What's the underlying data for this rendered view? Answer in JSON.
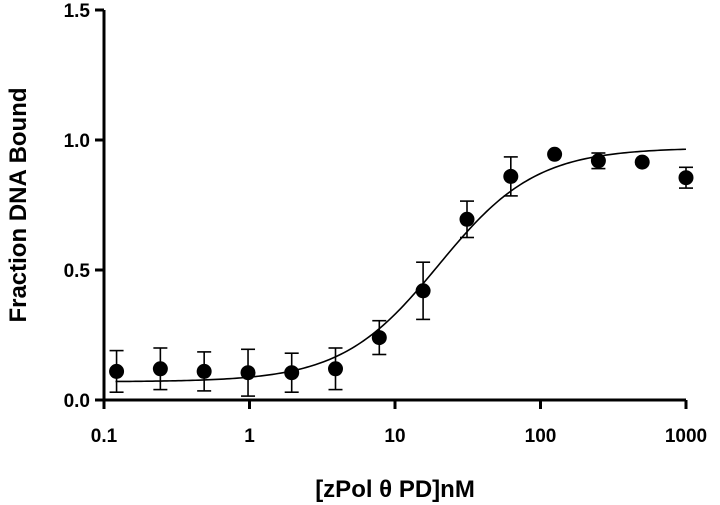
{
  "chart_data": {
    "type": "scatter",
    "xscale": "log",
    "xlabel": "[zPol θ PD]nM",
    "ylabel": "Fraction DNA Bound",
    "xlim": [
      0.1,
      1000
    ],
    "ylim": [
      0.0,
      1.5
    ],
    "xticks": [
      "0.1",
      "1",
      "10",
      "100",
      "1000"
    ],
    "xtick_values": [
      0.1,
      1,
      10,
      100,
      1000
    ],
    "yticks": [
      "0.0",
      "0.5",
      "1.0",
      "1.5"
    ],
    "ytick_values": [
      0.0,
      0.5,
      1.0,
      1.5
    ],
    "grid": false,
    "legend": "none",
    "marker_color": "#000000",
    "series": [
      {
        "points": [
          {
            "x": 0.122,
            "y": 0.11,
            "err": 0.08
          },
          {
            "x": 0.244,
            "y": 0.12,
            "err": 0.08
          },
          {
            "x": 0.488,
            "y": 0.11,
            "err": 0.075
          },
          {
            "x": 0.977,
            "y": 0.105,
            "err": 0.09
          },
          {
            "x": 1.95,
            "y": 0.105,
            "err": 0.075
          },
          {
            "x": 3.9,
            "y": 0.12,
            "err": 0.08
          },
          {
            "x": 7.8,
            "y": 0.24,
            "err": 0.065
          },
          {
            "x": 15.6,
            "y": 0.42,
            "err": 0.11
          },
          {
            "x": 31.25,
            "y": 0.695,
            "err": 0.07
          },
          {
            "x": 62.5,
            "y": 0.86,
            "err": 0.075
          },
          {
            "x": 125,
            "y": 0.945,
            "err": 0
          },
          {
            "x": 250,
            "y": 0.92,
            "err": 0.03
          },
          {
            "x": 500,
            "y": 0.915,
            "err": 0
          },
          {
            "x": 1000,
            "y": 0.855,
            "err": 0.04
          }
        ]
      }
    ],
    "fit": {
      "type": "sigmoid",
      "bottom": 0.07,
      "top": 0.97,
      "ec50": 20,
      "hill": 1.3,
      "x_range": [
        0.12,
        1000
      ]
    }
  }
}
